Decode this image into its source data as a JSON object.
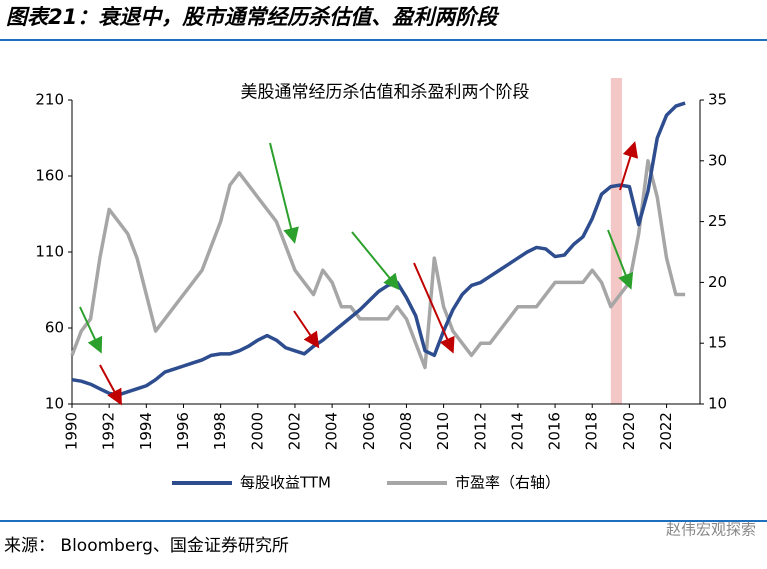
{
  "header": {
    "title": "图表21：衰退中，股市通常经历杀估值、盈利两阶段"
  },
  "chart_data": {
    "type": "line",
    "title": "美股通常经历杀估值和杀盈利两个阶段",
    "x": [
      1990,
      1990.5,
      1991,
      1991.5,
      1992,
      1992.5,
      1993,
      1993.5,
      1994,
      1994.5,
      1995,
      1995.5,
      1996,
      1996.5,
      1997,
      1997.5,
      1998,
      1998.5,
      1999,
      1999.5,
      2000,
      2000.5,
      2001,
      2001.5,
      2002,
      2002.5,
      2003,
      2003.5,
      2004,
      2004.5,
      2005,
      2005.5,
      2006,
      2006.5,
      2007,
      2007.5,
      2008,
      2008.5,
      2009,
      2009.5,
      2010,
      2010.5,
      2011,
      2011.5,
      2012,
      2012.5,
      2013,
      2013.5,
      2014,
      2014.5,
      2015,
      2015.5,
      2016,
      2016.5,
      2017,
      2017.5,
      2018,
      2018.5,
      2019,
      2019.5,
      2020,
      2020.5,
      2021,
      2021.5,
      2022,
      2022.5,
      2023
    ],
    "series": [
      {
        "name": "每股收益TTM",
        "color": "#2e4d8f",
        "values": [
          26,
          25,
          23,
          20,
          17,
          16,
          18,
          20,
          22,
          26,
          31,
          33,
          35,
          37,
          39,
          42,
          43,
          43,
          45,
          48,
          52,
          55,
          52,
          47,
          45,
          43,
          48,
          52,
          57,
          62,
          67,
          72,
          78,
          84,
          88,
          90,
          80,
          68,
          45,
          42,
          58,
          72,
          82,
          88,
          90,
          94,
          98,
          102,
          106,
          110,
          113,
          112,
          107,
          108,
          115,
          120,
          132,
          148,
          153,
          154,
          153,
          128,
          150,
          185,
          200,
          206,
          208
        ]
      },
      {
        "name": "市盈率（右轴）",
        "color": "#a6a6a6",
        "axis": "y2",
        "values": [
          14,
          16,
          17,
          22,
          26,
          25,
          24,
          22,
          19,
          16,
          17,
          18,
          19,
          20,
          21,
          23,
          25,
          28,
          29,
          28,
          27,
          26,
          25,
          23,
          21,
          20,
          19,
          21,
          20,
          18,
          18,
          17,
          17,
          17,
          17,
          18,
          17,
          15,
          13,
          22,
          18,
          16,
          15,
          14,
          15,
          15,
          16,
          17,
          18,
          18,
          18,
          19,
          20,
          20,
          20,
          20,
          21,
          20,
          18,
          19,
          20,
          24,
          30,
          27,
          22,
          19,
          19
        ]
      }
    ],
    "shaded_range": [
      2019,
      2019.6
    ],
    "xlim": [
      1990,
      2023.8
    ],
    "xticks": [
      1990,
      1992,
      1994,
      1996,
      1998,
      2000,
      2002,
      2004,
      2006,
      2008,
      2010,
      2012,
      2014,
      2016,
      2018,
      2020,
      2022
    ],
    "ylim": [
      10,
      210
    ],
    "yticks": [
      10,
      60,
      110,
      160,
      210
    ],
    "y2lim": [
      10,
      35
    ],
    "y2ticks": [
      10,
      15,
      20,
      25,
      30,
      35
    ]
  },
  "footer": {
    "source": "来源：  Bloomberg、国金证券研究所",
    "watermark": "赵伟宏观探索"
  }
}
